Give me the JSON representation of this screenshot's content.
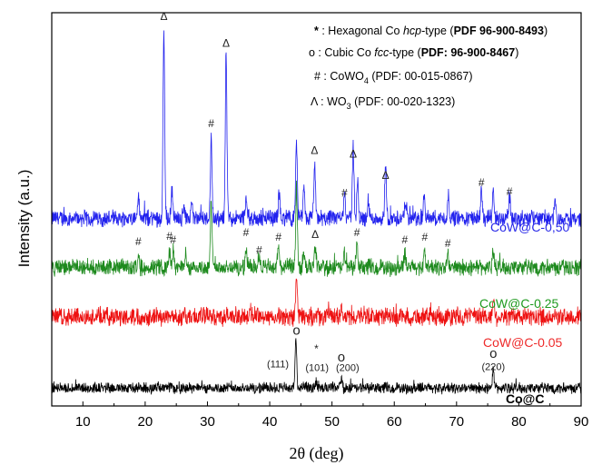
{
  "chart_data": {
    "type": "line",
    "xlabel": "2θ (deg)",
    "ylabel": "Intensity (a.u.)",
    "xlim": [
      5,
      90
    ],
    "xticks": [
      10,
      20,
      30,
      40,
      50,
      60,
      70,
      80,
      90
    ],
    "grid": false,
    "legend": [
      {
        "symbol": "*",
        "text": " : Hexagonal Co ",
        "italic": "hcp",
        "text2": "-type (",
        "bold": "PDF 96-900-8493",
        "text3": ")"
      },
      {
        "symbol": "o",
        "text": " : Cubic Co ",
        "italic": "fcc",
        "text2": "-type (",
        "bold": "PDF: 96-900-8467",
        "text3": ")"
      },
      {
        "symbol": "#",
        "text": " : CoWO",
        "sub": "4",
        "text2": " (PDF: 00-015-0867)"
      },
      {
        "symbol": "Λ",
        "text": " : WO",
        "sub": "3",
        "text2": " (PDF: 00-020-1323)"
      }
    ],
    "series": [
      {
        "name": "CoW@C-0,50",
        "color": "#2222ee",
        "label_color": "#2a2ae8",
        "baseline": 2.0,
        "noise": 0.09,
        "peaks": [
          [
            18.9,
            0.25
          ],
          [
            23.0,
            2.1
          ],
          [
            24.3,
            0.3
          ],
          [
            26.2,
            0.15
          ],
          [
            27.5,
            0.15
          ],
          [
            30.6,
            0.9
          ],
          [
            33.0,
            1.8
          ],
          [
            36.2,
            0.25
          ],
          [
            41.5,
            0.3
          ],
          [
            44.3,
            0.85
          ],
          [
            45.5,
            0.3
          ],
          [
            47.2,
            0.6
          ],
          [
            52.0,
            0.3
          ],
          [
            53.4,
            0.8
          ],
          [
            54.1,
            0.4
          ],
          [
            55.8,
            0.2
          ],
          [
            58.6,
            0.6
          ],
          [
            61.8,
            0.2
          ],
          [
            64.8,
            0.25
          ],
          [
            68.7,
            0.25
          ],
          [
            74.0,
            0.3
          ],
          [
            75.9,
            0.3
          ],
          [
            78.5,
            0.25
          ],
          [
            85.8,
            0.15
          ]
        ]
      },
      {
        "name": "CoW@C-0.25",
        "color": "#1e8a1e",
        "label_color": "#1f9a1f",
        "baseline": 1.45,
        "noise": 0.09,
        "peaks": [
          [
            18.9,
            0.18
          ],
          [
            23.9,
            0.2
          ],
          [
            24.5,
            0.18
          ],
          [
            26.5,
            0.1
          ],
          [
            30.6,
            0.7
          ],
          [
            36.2,
            0.2
          ],
          [
            38.3,
            0.15
          ],
          [
            41.4,
            0.25
          ],
          [
            44.3,
            0.9
          ],
          [
            45.5,
            0.15
          ],
          [
            47.3,
            0.2
          ],
          [
            52.0,
            0.15
          ],
          [
            54.0,
            0.25
          ],
          [
            61.7,
            0.15
          ],
          [
            64.9,
            0.2
          ],
          [
            68.6,
            0.15
          ],
          [
            75.9,
            0.2
          ]
        ]
      },
      {
        "name": "CoW@C-0.05",
        "color": "#ee1111",
        "label_color": "#ee2a2a",
        "baseline": 0.9,
        "noise": 0.1,
        "peaks": [
          [
            44.3,
            0.45
          ],
          [
            51.5,
            0.1
          ],
          [
            75.9,
            0.2
          ]
        ]
      },
      {
        "name": "Co@C",
        "color": "#000000",
        "label_color": "#000000",
        "baseline": 0.1,
        "noise": 0.06,
        "peaks": [
          [
            44.2,
            0.55
          ],
          [
            47.5,
            0.08
          ],
          [
            51.5,
            0.12
          ],
          [
            75.9,
            0.2
          ]
        ]
      }
    ],
    "ylim": [
      -0.1,
      4.3
    ],
    "annotations": [
      {
        "text": "Δ",
        "x": 23.0,
        "y": 4.22
      },
      {
        "text": "Δ",
        "x": 33.0,
        "y": 3.92
      },
      {
        "text": "#",
        "x": 30.6,
        "y": 3.02
      },
      {
        "text": "Δ",
        "x": 47.2,
        "y": 2.72
      },
      {
        "text": "Δ",
        "x": 53.4,
        "y": 2.68
      },
      {
        "text": "Δ",
        "x": 58.6,
        "y": 2.44
      },
      {
        "text": "#",
        "x": 52.0,
        "y": 2.24
      },
      {
        "text": "#",
        "x": 74.0,
        "y": 2.36
      },
      {
        "text": "#",
        "x": 78.5,
        "y": 2.26
      },
      {
        "text": "#",
        "x": 18.9,
        "y": 1.7
      },
      {
        "text": "#",
        "x": 23.9,
        "y": 1.76
      },
      {
        "text": "#",
        "x": 24.5,
        "y": 1.72
      },
      {
        "text": "#",
        "x": 36.2,
        "y": 1.8
      },
      {
        "text": "#",
        "x": 38.3,
        "y": 1.6
      },
      {
        "text": "#",
        "x": 41.4,
        "y": 1.75
      },
      {
        "text": "Δ",
        "x": 47.3,
        "y": 1.78
      },
      {
        "text": "#",
        "x": 54.0,
        "y": 1.8
      },
      {
        "text": "#",
        "x": 61.7,
        "y": 1.72
      },
      {
        "text": "#",
        "x": 64.9,
        "y": 1.75
      },
      {
        "text": "#",
        "x": 68.6,
        "y": 1.68
      },
      {
        "text": "o",
        "x": 44.3,
        "y": 0.7
      },
      {
        "text": "*",
        "x": 47.5,
        "y": 0.5
      },
      {
        "text": "o",
        "x": 51.5,
        "y": 0.4
      },
      {
        "text": "o",
        "x": 75.9,
        "y": 0.44
      },
      {
        "text": "(111)",
        "x": 41.3,
        "y": 0.33
      },
      {
        "text": "(101)",
        "x": 47.6,
        "y": 0.29
      },
      {
        "text": "(200)",
        "x": 52.5,
        "y": 0.29
      },
      {
        "text": "(220)",
        "x": 75.9,
        "y": 0.3
      }
    ]
  }
}
